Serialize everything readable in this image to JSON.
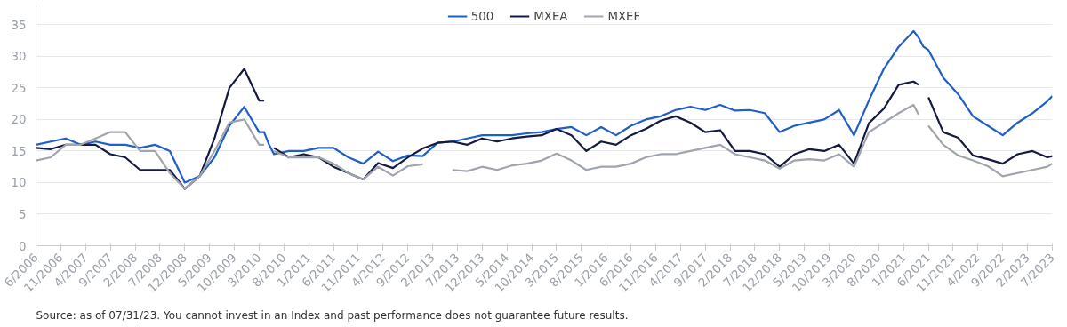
{
  "chart_data": {
    "type": "line",
    "x": [
      "2006-06",
      "2006-09",
      "2006-12",
      "2007-03",
      "2007-06",
      "2007-09",
      "2007-12",
      "2008-03",
      "2008-06",
      "2008-09",
      "2008-12",
      "2009-03",
      "2009-06",
      "2009-09",
      "2009-12",
      "2010-03",
      "2010-04",
      "2010-05",
      "2010-06",
      "2010-09",
      "2010-12",
      "2011-03",
      "2011-06",
      "2011-09",
      "2011-12",
      "2012-03",
      "2012-06",
      "2012-09",
      "2012-12",
      "2013-03",
      "2013-06",
      "2013-09",
      "2013-12",
      "2014-03",
      "2014-06",
      "2014-09",
      "2014-12",
      "2015-03",
      "2015-06",
      "2015-09",
      "2015-12",
      "2016-03",
      "2016-06",
      "2016-09",
      "2016-12",
      "2017-03",
      "2017-06",
      "2017-09",
      "2017-12",
      "2018-03",
      "2018-06",
      "2018-09",
      "2018-12",
      "2019-03",
      "2019-06",
      "2019-09",
      "2019-12",
      "2020-03",
      "2020-06",
      "2020-09",
      "2020-12",
      "2021-03",
      "2021-04",
      "2021-05",
      "2021-06",
      "2021-09",
      "2021-12",
      "2022-03",
      "2022-06",
      "2022-09",
      "2022-12",
      "2023-03",
      "2023-06",
      "2023-07"
    ],
    "series": [
      {
        "name": "500",
        "color": "#1f5fc9",
        "values": [
          16,
          16.5,
          17,
          16,
          16.5,
          16,
          16,
          15.5,
          16,
          15,
          10,
          11,
          14,
          19,
          22,
          18,
          18,
          16,
          14.5,
          15,
          15,
          15.5,
          15.5,
          14,
          13,
          14.9,
          13.4,
          14.3,
          14.2,
          16.3,
          16.5,
          17,
          17.5,
          17.5,
          17.5,
          17.8,
          18,
          18.5,
          18.8,
          17.5,
          18.8,
          17.5,
          19,
          20,
          20.5,
          21.5,
          22,
          21.5,
          22.3,
          21.4,
          21.5,
          21,
          18,
          19,
          19.5,
          20,
          21.5,
          17.5,
          23,
          28,
          31.5,
          34,
          33,
          31.5,
          31,
          26.6,
          24,
          20.5,
          19,
          17.5,
          19.5,
          21,
          22.9,
          23.7
        ]
      },
      {
        "name": "MXEA",
        "color": "#141a40",
        "values": [
          15.5,
          15.3,
          16,
          16,
          16,
          14.5,
          14,
          12,
          12,
          12,
          9,
          11,
          17,
          25,
          28,
          23,
          23,
          null,
          15.5,
          14,
          14.5,
          14,
          12.5,
          11.5,
          10.5,
          13.1,
          12.3,
          14,
          15.4,
          16.3,
          16.5,
          16,
          17,
          16.5,
          17,
          17.3,
          17.5,
          18.5,
          17.5,
          15,
          16.5,
          16,
          17.5,
          18.5,
          19.8,
          20.5,
          19.5,
          18,
          18.3,
          15,
          15,
          14.5,
          12.5,
          14.5,
          15.3,
          15,
          16,
          13,
          19.4,
          21.7,
          25.5,
          26,
          25.5,
          null,
          23.5,
          18,
          17.1,
          14.3,
          13.7,
          13,
          14.5,
          15,
          14,
          14.2
        ]
      },
      {
        "name": "MXEF",
        "color": "#a0a5ad",
        "values": [
          13.5,
          14,
          16,
          16,
          17,
          18,
          18,
          15,
          15,
          11.5,
          9,
          11,
          15,
          19.5,
          20,
          16,
          16,
          null,
          15,
          14,
          14,
          14,
          13,
          11.5,
          10.5,
          12.5,
          11.1,
          12.6,
          12.9,
          null,
          12,
          11.8,
          12.5,
          12,
          12.7,
          13,
          13.5,
          14.6,
          13.5,
          12,
          12.5,
          12.5,
          13,
          14,
          14.5,
          14.5,
          15,
          15.5,
          16,
          14.5,
          14,
          13.5,
          12.2,
          13.5,
          13.7,
          13.5,
          14.5,
          12.5,
          18,
          19.5,
          21,
          22.3,
          20.8,
          null,
          19,
          16,
          14.3,
          13.5,
          12.6,
          11,
          11.5,
          12,
          12.5,
          13
        ]
      }
    ],
    "xlim": [
      "2006-06",
      "2023-07"
    ],
    "xticks": [
      {
        "value": "2006-06",
        "label": "6/2006"
      },
      {
        "value": "2006-11",
        "label": "11/2006"
      },
      {
        "value": "2007-04",
        "label": "4/2007"
      },
      {
        "value": "2007-09",
        "label": "9/2007"
      },
      {
        "value": "2008-02",
        "label": "2/2008"
      },
      {
        "value": "2008-07",
        "label": "7/2008"
      },
      {
        "value": "2008-12",
        "label": "12/2008"
      },
      {
        "value": "2009-05",
        "label": "5/2009"
      },
      {
        "value": "2009-10",
        "label": "10/2009"
      },
      {
        "value": "2010-03",
        "label": "3/2010"
      },
      {
        "value": "2010-08",
        "label": "8/2010"
      },
      {
        "value": "2011-01",
        "label": "1/2011"
      },
      {
        "value": "2011-06",
        "label": "6/2011"
      },
      {
        "value": "2011-11",
        "label": "11/2011"
      },
      {
        "value": "2012-04",
        "label": "4/2012"
      },
      {
        "value": "2012-09",
        "label": "9/2012"
      },
      {
        "value": "2013-02",
        "label": "2/2013"
      },
      {
        "value": "2013-07",
        "label": "7/2013"
      },
      {
        "value": "2013-12",
        "label": "12/2013"
      },
      {
        "value": "2014-05",
        "label": "5/2014"
      },
      {
        "value": "2014-10",
        "label": "10/2014"
      },
      {
        "value": "2015-03",
        "label": "3/2015"
      },
      {
        "value": "2015-08",
        "label": "8/2015"
      },
      {
        "value": "2016-01",
        "label": "1/2016"
      },
      {
        "value": "2016-06",
        "label": "6/2016"
      },
      {
        "value": "2016-11",
        "label": "11/2016"
      },
      {
        "value": "2017-04",
        "label": "4/2017"
      },
      {
        "value": "2017-09",
        "label": "9/2017"
      },
      {
        "value": "2018-02",
        "label": "2/2018"
      },
      {
        "value": "2018-07",
        "label": "7/2018"
      },
      {
        "value": "2018-12",
        "label": "12/2018"
      },
      {
        "value": "2019-05",
        "label": "5/2019"
      },
      {
        "value": "2019-10",
        "label": "10/2019"
      },
      {
        "value": "2020-03",
        "label": "3/2020"
      },
      {
        "value": "2020-08",
        "label": "8/2020"
      },
      {
        "value": "2021-01",
        "label": "1/2021"
      },
      {
        "value": "2021-06",
        "label": "6/2021"
      },
      {
        "value": "2021-11",
        "label": "11/2021"
      },
      {
        "value": "2022-04",
        "label": "4/2022"
      },
      {
        "value": "2022-09",
        "label": "9/2022"
      },
      {
        "value": "2023-02",
        "label": "2/2023"
      },
      {
        "value": "2023-07",
        "label": "7/2023"
      }
    ],
    "ylim": [
      0,
      38
    ],
    "yticks": [
      0,
      5,
      10,
      15,
      20,
      25,
      30,
      35
    ],
    "grid": "y",
    "legend": "top",
    "line_style": "solid",
    "annotations": [
      "Source: as of 07/31/23. You cannot invest in an Index and past performance does not guarantee future results."
    ]
  }
}
